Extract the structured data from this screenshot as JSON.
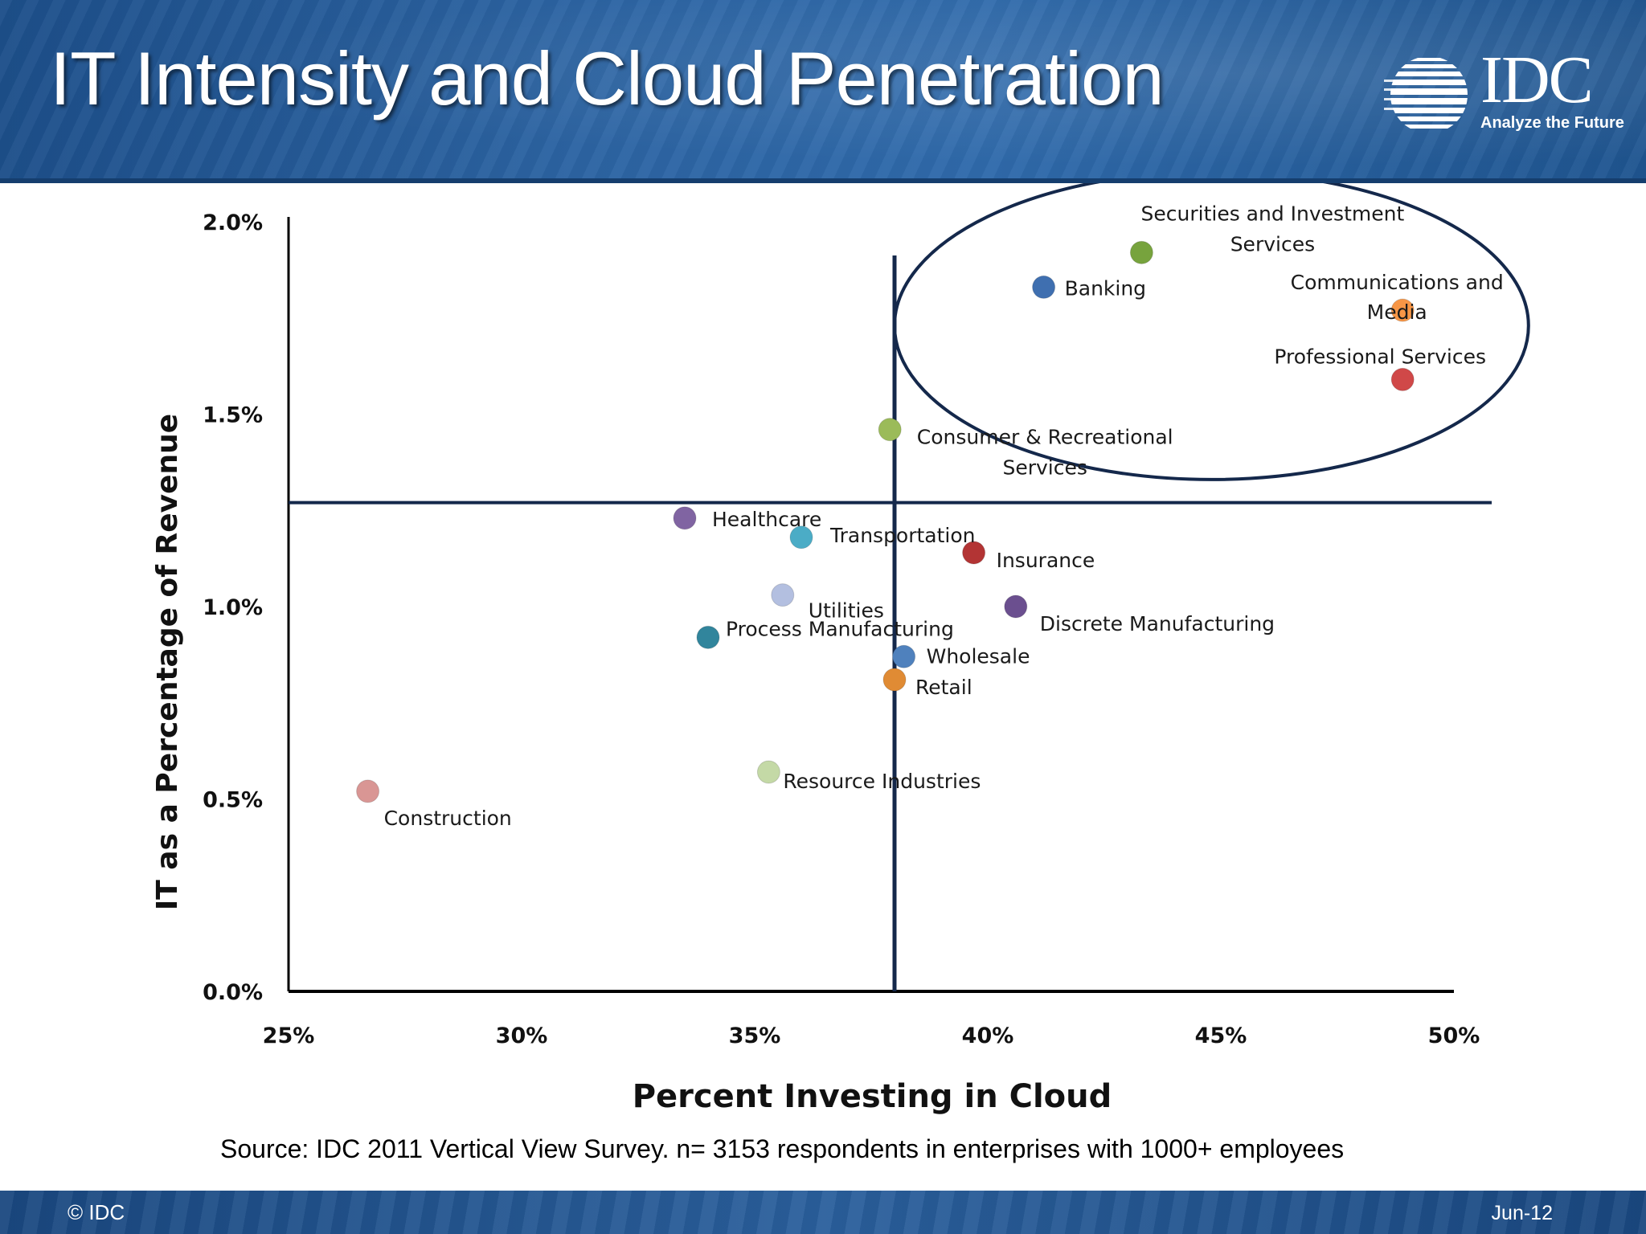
{
  "slide": {
    "title": "IT Intensity and Cloud Penetration",
    "logo": {
      "mark": "IDC",
      "tagline": "Analyze the Future"
    },
    "source": "Source: IDC 2011 Vertical View Survey. n= 3153 respondents in enterprises with 1000+ employees",
    "footer": {
      "copyright": "© IDC",
      "date": "Jun-12"
    }
  },
  "chart_data": {
    "type": "scatter",
    "xlabel": "Percent Investing in Cloud",
    "ylabel": "IT as a Percentage of Revenue",
    "xlim": [
      25,
      50
    ],
    "ylim": [
      0,
      2
    ],
    "x_ticks": [
      {
        "value": 25,
        "label": "25%"
      },
      {
        "value": 30,
        "label": "30%"
      },
      {
        "value": 35,
        "label": "35%"
      },
      {
        "value": 40,
        "label": "40%"
      },
      {
        "value": 45,
        "label": "45%"
      },
      {
        "value": 50,
        "label": "50%"
      }
    ],
    "y_ticks": [
      {
        "value": 0,
        "label": "0.0%"
      },
      {
        "value": 0.5,
        "label": "0.5%"
      },
      {
        "value": 1.0,
        "label": "1.0%"
      },
      {
        "value": 1.5,
        "label": "1.5%"
      },
      {
        "value": 2.0,
        "label": "2.0%"
      }
    ],
    "grid": false,
    "reference_lines": {
      "x": 38.0,
      "y": 1.27
    },
    "highlight_ellipse": {
      "cx": 44.8,
      "cy": 1.73,
      "rx": 6.8,
      "ry": 0.4
    },
    "points": [
      {
        "name": "Construction",
        "lines": [
          "Construction"
        ],
        "x": 26.7,
        "y": 0.52,
        "color": "#d99694"
      },
      {
        "name": "Resource Industries",
        "lines": [
          "Resource Industries"
        ],
        "x": 35.3,
        "y": 0.57,
        "color": "#c4d9a6"
      },
      {
        "name": "Process Manufacturing",
        "lines": [
          "Process Manufacturing"
        ],
        "x": 34.0,
        "y": 0.92,
        "color": "#31859c"
      },
      {
        "name": "Utilities",
        "lines": [
          "Utilities"
        ],
        "x": 35.6,
        "y": 1.03,
        "color": "#b3bfe0"
      },
      {
        "name": "Healthcare",
        "lines": [
          "Healthcare"
        ],
        "x": 33.5,
        "y": 1.23,
        "color": "#8064a2"
      },
      {
        "name": "Transportation",
        "lines": [
          "Transportation"
        ],
        "x": 36.0,
        "y": 1.18,
        "color": "#4bacc6"
      },
      {
        "name": "Retail",
        "lines": [
          "Retail"
        ],
        "x": 38.0,
        "y": 0.81,
        "color": "#e08b34"
      },
      {
        "name": "Wholesale",
        "lines": [
          "Wholesale"
        ],
        "x": 38.2,
        "y": 0.87,
        "color": "#4f81bd"
      },
      {
        "name": "Insurance",
        "lines": [
          "Insurance"
        ],
        "x": 39.7,
        "y": 1.14,
        "color": "#b33434"
      },
      {
        "name": "Discrete Manufacturing",
        "lines": [
          "Discrete Manufacturing"
        ],
        "x": 40.6,
        "y": 1.0,
        "color": "#6b4f8f"
      },
      {
        "name": "Consumer & Recreational Services",
        "lines": [
          "Consumer & Recreational",
          "Services"
        ],
        "x": 37.9,
        "y": 1.46,
        "color": "#9bbb59"
      },
      {
        "name": "Banking",
        "lines": [
          "Banking"
        ],
        "x": 41.2,
        "y": 1.83,
        "color": "#3f6fb0"
      },
      {
        "name": "Securities and Investment Services",
        "lines": [
          "Securities and Investment",
          "Services"
        ],
        "x": 43.3,
        "y": 1.92,
        "color": "#77a33d"
      },
      {
        "name": "Communications and Media",
        "lines": [
          "Communications and",
          "Media"
        ],
        "x": 48.9,
        "y": 1.77,
        "color": "#f79646"
      },
      {
        "name": "Professional Services",
        "lines": [
          "Professional Services"
        ],
        "x": 48.9,
        "y": 1.59,
        "color": "#d04848"
      }
    ]
  }
}
